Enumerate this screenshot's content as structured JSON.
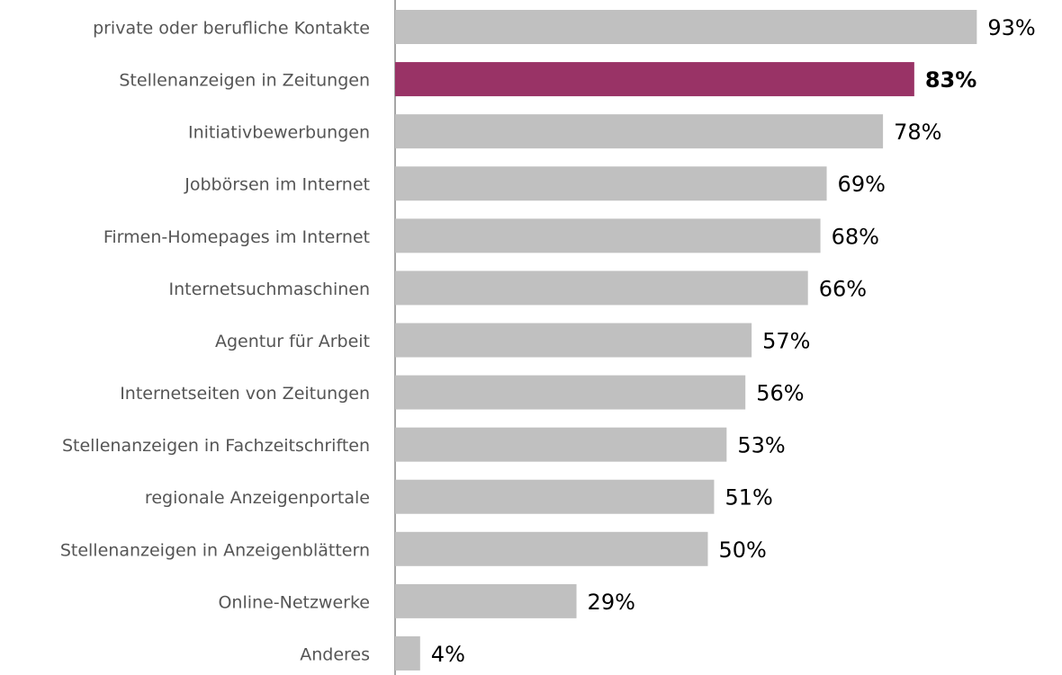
{
  "chart_data": {
    "type": "bar",
    "orientation": "horizontal",
    "categories": [
      "private oder berufliche Kontakte",
      "Stellenanzeigen in Zeitungen",
      "Initiativbewerbungen",
      "Jobbörsen im Internet",
      "Firmen-Homepages im Internet",
      "Internetsuchmaschinen",
      "Agentur für Arbeit",
      "Internetseiten von Zeitungen",
      "Stellenanzeigen in Fachzeitschriften",
      "regionale Anzeigenportale",
      "Stellenanzeigen in Anzeigenblättern",
      "Online-Netzwerke",
      "Anderes"
    ],
    "values": [
      93,
      83,
      78,
      69,
      68,
      66,
      57,
      56,
      53,
      51,
      50,
      29,
      4
    ],
    "value_labels": [
      "93%",
      "83%",
      "78%",
      "69%",
      "68%",
      "66%",
      "57%",
      "56%",
      "53%",
      "51%",
      "50%",
      "29%",
      "4%"
    ],
    "color": "#c0c0c0",
    "colors": [
      "#c0c0c0",
      "#993366",
      "#c0c0c0",
      "#c0c0c0",
      "#c0c0c0",
      "#c0c0c0",
      "#c0c0c0",
      "#c0c0c0",
      "#c0c0c0",
      "#c0c0c0",
      "#c0c0c0",
      "#c0c0c0",
      "#c0c0c0"
    ],
    "xlim": [
      0,
      100
    ]
  }
}
